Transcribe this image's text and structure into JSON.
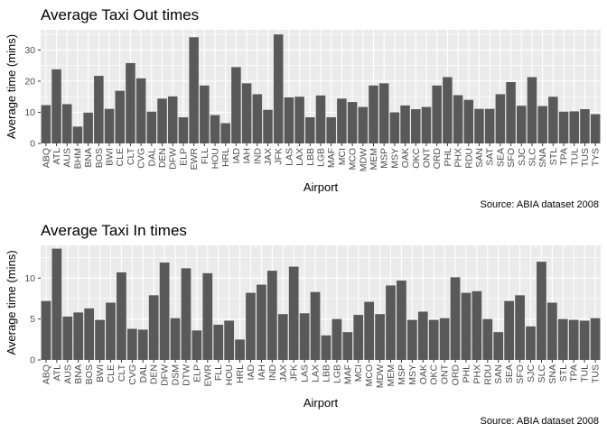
{
  "chart_data": [
    {
      "type": "bar",
      "title": "Average Taxi Out times",
      "xlabel": "Airport",
      "ylabel": "Average time (mins)",
      "caption": "Source: ABIA dataset 2008",
      "ylim": [
        0,
        36.5
      ],
      "yticks": [
        0,
        10,
        20,
        30
      ],
      "grid": true,
      "bar_color": "#595959",
      "panel_color": "#ebebeb",
      "categories": [
        "ABQ",
        "ATL",
        "AUS",
        "BHM",
        "BNA",
        "BOS",
        "BWI",
        "CLE",
        "CLT",
        "CVG",
        "DAL",
        "DEN",
        "DFW",
        "ELP",
        "EWR",
        "FLL",
        "HOU",
        "HRL",
        "IAD",
        "IAH",
        "IND",
        "JAX",
        "JFK",
        "LAS",
        "LAX",
        "LBB",
        "LGB",
        "MAF",
        "MCI",
        "MCO",
        "MDW",
        "MEM",
        "MSP",
        "MSY",
        "OAK",
        "OKC",
        "ONT",
        "ORD",
        "PHL",
        "PHX",
        "RDU",
        "SAN",
        "SAT",
        "SEA",
        "SFO",
        "SJC",
        "SLC",
        "SNA",
        "STL",
        "TPA",
        "TUL",
        "TUS",
        "TYS"
      ],
      "values": [
        12.3,
        23.8,
        12.6,
        5.4,
        9.9,
        21.7,
        11.1,
        16.9,
        25.8,
        20.9,
        10.2,
        14.4,
        15.1,
        8.4,
        34.1,
        18.6,
        9.1,
        6.5,
        24.5,
        19.3,
        15.8,
        10.8,
        35.0,
        14.8,
        15.0,
        8.4,
        15.4,
        8.4,
        14.4,
        13.3,
        11.7,
        18.6,
        19.3,
        10.0,
        12.2,
        11.0,
        11.7,
        18.6,
        21.3,
        15.5,
        14.0,
        11.1,
        11.1,
        15.8,
        19.7,
        12.1,
        21.3,
        12.0,
        15.0,
        10.2,
        10.3,
        11.0,
        9.4
      ]
    },
    {
      "type": "bar",
      "title": "Average Taxi In times",
      "xlabel": "Airport",
      "ylabel": "Average time (mins)",
      "caption": "Source: ABIA dataset 2008",
      "ylim": [
        0,
        14.0
      ],
      "yticks": [
        0,
        5,
        10
      ],
      "grid": true,
      "bar_color": "#595959",
      "panel_color": "#ebebeb",
      "categories": [
        "ABQ",
        "ATL",
        "AUS",
        "BNA",
        "BOS",
        "BWI",
        "CLE",
        "CLT",
        "CVG",
        "DAL",
        "DEN",
        "DFW",
        "DSM",
        "DTW",
        "ELP",
        "EWR",
        "FLL",
        "HOU",
        "HRL",
        "IAD",
        "IAH",
        "IND",
        "JAX",
        "JFK",
        "LAS",
        "LAX",
        "LBB",
        "LGB",
        "MAF",
        "MCI",
        "MCO",
        "MDW",
        "MEM",
        "MSP",
        "MSY",
        "OAK",
        "OKC",
        "ONT",
        "ORD",
        "PHL",
        "PHX",
        "RDU",
        "SAN",
        "SEA",
        "SFO",
        "SJC",
        "SLC",
        "SNA",
        "STL",
        "TPA",
        "TUL",
        "TUS"
      ],
      "values": [
        7.2,
        13.6,
        5.3,
        5.8,
        6.3,
        4.9,
        7.0,
        10.7,
        3.8,
        3.7,
        7.9,
        11.9,
        5.1,
        11.2,
        3.6,
        10.6,
        4.3,
        4.8,
        2.5,
        8.2,
        9.2,
        10.9,
        5.6,
        11.4,
        5.7,
        8.3,
        3.0,
        5.0,
        3.4,
        5.5,
        7.1,
        5.6,
        9.1,
        9.7,
        4.9,
        5.9,
        4.9,
        5.1,
        10.1,
        8.2,
        8.4,
        5.0,
        3.4,
        7.2,
        7.9,
        4.1,
        12.0,
        7.0,
        5.0,
        4.9,
        4.8,
        5.1
      ]
    }
  ]
}
